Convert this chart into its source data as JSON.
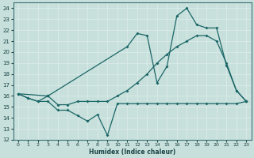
{
  "xlabel": "Humidex (Indice chaleur)",
  "xlim": [
    -0.5,
    23.5
  ],
  "ylim": [
    12,
    24.5
  ],
  "yticks": [
    12,
    13,
    14,
    15,
    16,
    17,
    18,
    19,
    20,
    21,
    22,
    23,
    24
  ],
  "xticks": [
    0,
    1,
    2,
    3,
    4,
    5,
    6,
    7,
    8,
    9,
    10,
    11,
    12,
    13,
    14,
    15,
    16,
    17,
    18,
    19,
    20,
    21,
    22,
    23
  ],
  "bg_color": "#c8e0dc",
  "grid_color": "#d8eae8",
  "line_color": "#1a6666",
  "line1_x": [
    0,
    1,
    2,
    3,
    4,
    5,
    6,
    7,
    8,
    9,
    10,
    11,
    12,
    13,
    14,
    15,
    16,
    17,
    18,
    19,
    20,
    21,
    22,
    23
  ],
  "line1_y": [
    16.2,
    15.8,
    15.5,
    15.5,
    14.7,
    14.7,
    14.2,
    13.7,
    14.3,
    12.4,
    15.3,
    15.3,
    15.3,
    15.3,
    15.3,
    15.3,
    15.3,
    15.3,
    15.3,
    15.3,
    15.3,
    15.3,
    15.3,
    15.5
  ],
  "line2_x": [
    0,
    1,
    2,
    3,
    4,
    5,
    6,
    7,
    8,
    9,
    10,
    11,
    12,
    13,
    14,
    15,
    16,
    17,
    18,
    19,
    20,
    21,
    22,
    23
  ],
  "line2_y": [
    16.2,
    15.8,
    15.5,
    16.0,
    15.2,
    15.2,
    15.5,
    15.5,
    15.5,
    15.5,
    16.0,
    16.5,
    17.2,
    18.0,
    19.0,
    19.8,
    20.5,
    21.0,
    21.5,
    21.5,
    21.0,
    19.0,
    16.5,
    15.5
  ],
  "line3_x": [
    0,
    3,
    11,
    12,
    13,
    14,
    15,
    16,
    17,
    18,
    19,
    20,
    21,
    22,
    23
  ],
  "line3_y": [
    16.2,
    16.0,
    20.5,
    21.7,
    21.5,
    17.2,
    18.7,
    23.3,
    24.0,
    22.5,
    22.2,
    22.2,
    18.8,
    16.5,
    15.5
  ]
}
